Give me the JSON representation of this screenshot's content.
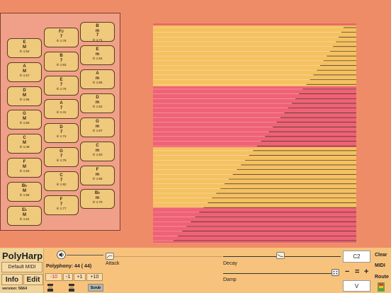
{
  "chords": [
    {
      "lines": [
        "B",
        "m",
        "7"
      ],
      "sub": "⑥ 1:71"
    },
    {
      "lines": [
        "F♯",
        "7"
      ],
      "sub": "⑥ 1:78"
    },
    {
      "lines": [
        "E",
        "M"
      ],
      "sub": "⑥ 1:52"
    },
    {
      "lines": [
        "E",
        "m"
      ],
      "sub": "⑥ 1:64"
    },
    {
      "lines": [
        "B",
        "7"
      ],
      "sub": "⑥ 1:83"
    },
    {
      "lines": [
        "A",
        "M"
      ],
      "sub": "⑥ 1:57"
    },
    {
      "lines": [
        "A",
        "m"
      ],
      "sub": "⑥ 1:66"
    },
    {
      "lines": [
        "E",
        "7"
      ],
      "sub": "⑥ 1:76"
    },
    {
      "lines": [
        "D",
        "M"
      ],
      "sub": "⑥ 1:55"
    },
    {
      "lines": [
        "D",
        "m"
      ],
      "sub": "⑥ 1:62"
    },
    {
      "lines": [
        "A",
        "7"
      ],
      "sub": "⑥ 1:41"
    },
    {
      "lines": [
        "G",
        "M"
      ],
      "sub": "⑥ 1:55"
    },
    {
      "lines": [
        "G",
        "m"
      ],
      "sub": "⑥ 1:67"
    },
    {
      "lines": [
        "D",
        "7"
      ],
      "sub": "⑥ 1:74"
    },
    {
      "lines": [
        "C",
        "M"
      ],
      "sub": "⑥ 1:48"
    },
    {
      "lines": [
        "C",
        "m"
      ],
      "sub": "⑥ 1:60"
    },
    {
      "lines": [
        "G",
        "7"
      ],
      "sub": "⑥ 1:79"
    },
    {
      "lines": [
        "F",
        "M"
      ],
      "sub": "⑥ 1:53"
    },
    {
      "lines": [
        "F",
        "m"
      ],
      "sub": "⑥ 1:66"
    },
    {
      "lines": [
        "C",
        "7"
      ],
      "sub": "⑥ 1:82"
    },
    {
      "lines": [
        "B♭",
        "M"
      ],
      "sub": "⑥ 1:58"
    },
    {
      "lines": [
        "B♭",
        "m"
      ],
      "sub": "⑥ 1:70"
    },
    {
      "lines": [
        "F",
        "7"
      ],
      "sub": "⑥ 1:77"
    },
    {
      "lines": [
        "E♭",
        "M"
      ],
      "sub": "⑥ 1:61"
    }
  ],
  "harp": {
    "band_colors": [
      "#f5c161",
      "#ef6275",
      "#f5c161",
      "#ef6275"
    ],
    "top_strip_color": "#e86a62",
    "line_color": "#3a2a22",
    "string_count": 46
  },
  "app": {
    "title": "PolyHarp",
    "default_midi": "Default MIDI",
    "info": "Info",
    "edit": "Edit",
    "version": "version: 5664"
  },
  "controls": {
    "polyphony": "Polyphony: 44 ( 44)",
    "step_minus10": "-10",
    "step_minus1": "-1",
    "step_plus1": "+1",
    "step_plus10": "+10",
    "scrub": "Scrub",
    "attack": "Attack",
    "decay": "Decay",
    "damp": "Damp",
    "note": "C2",
    "clear": "Clear",
    "midi": "MIDI",
    "minus": "−",
    "equals": "=",
    "plus": "+",
    "route": "Route",
    "voice": "V"
  }
}
